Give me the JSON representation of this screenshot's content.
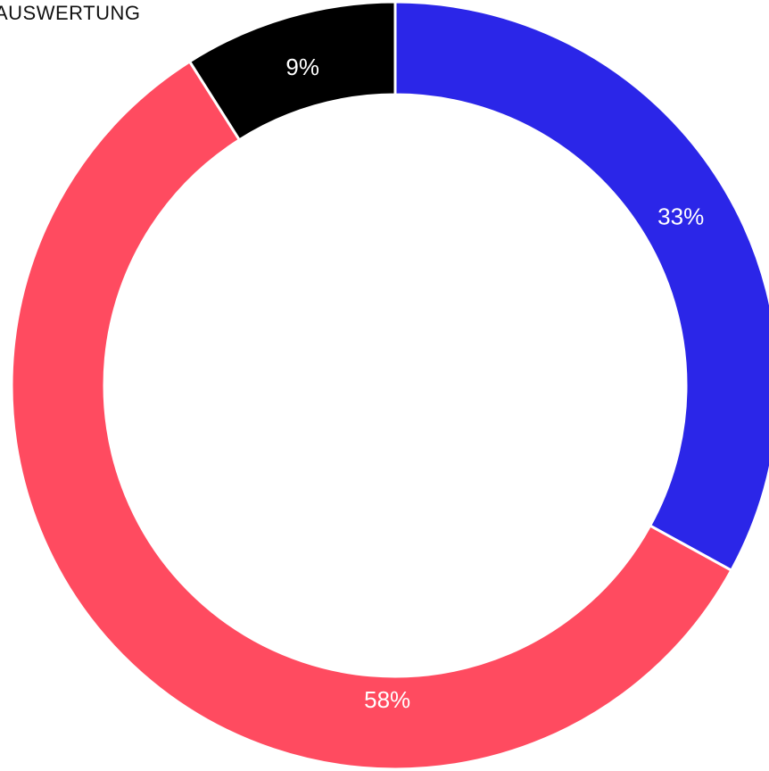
{
  "chart_data": {
    "type": "pie",
    "title": "AUSWERTUNG",
    "donut": true,
    "slices": [
      {
        "label": "33%",
        "value": 33,
        "color": "#2b26e8"
      },
      {
        "label": "58%",
        "value": 58,
        "color": "#ff4b60"
      },
      {
        "label": "9%",
        "value": 9,
        "color": "#000000"
      }
    ]
  }
}
